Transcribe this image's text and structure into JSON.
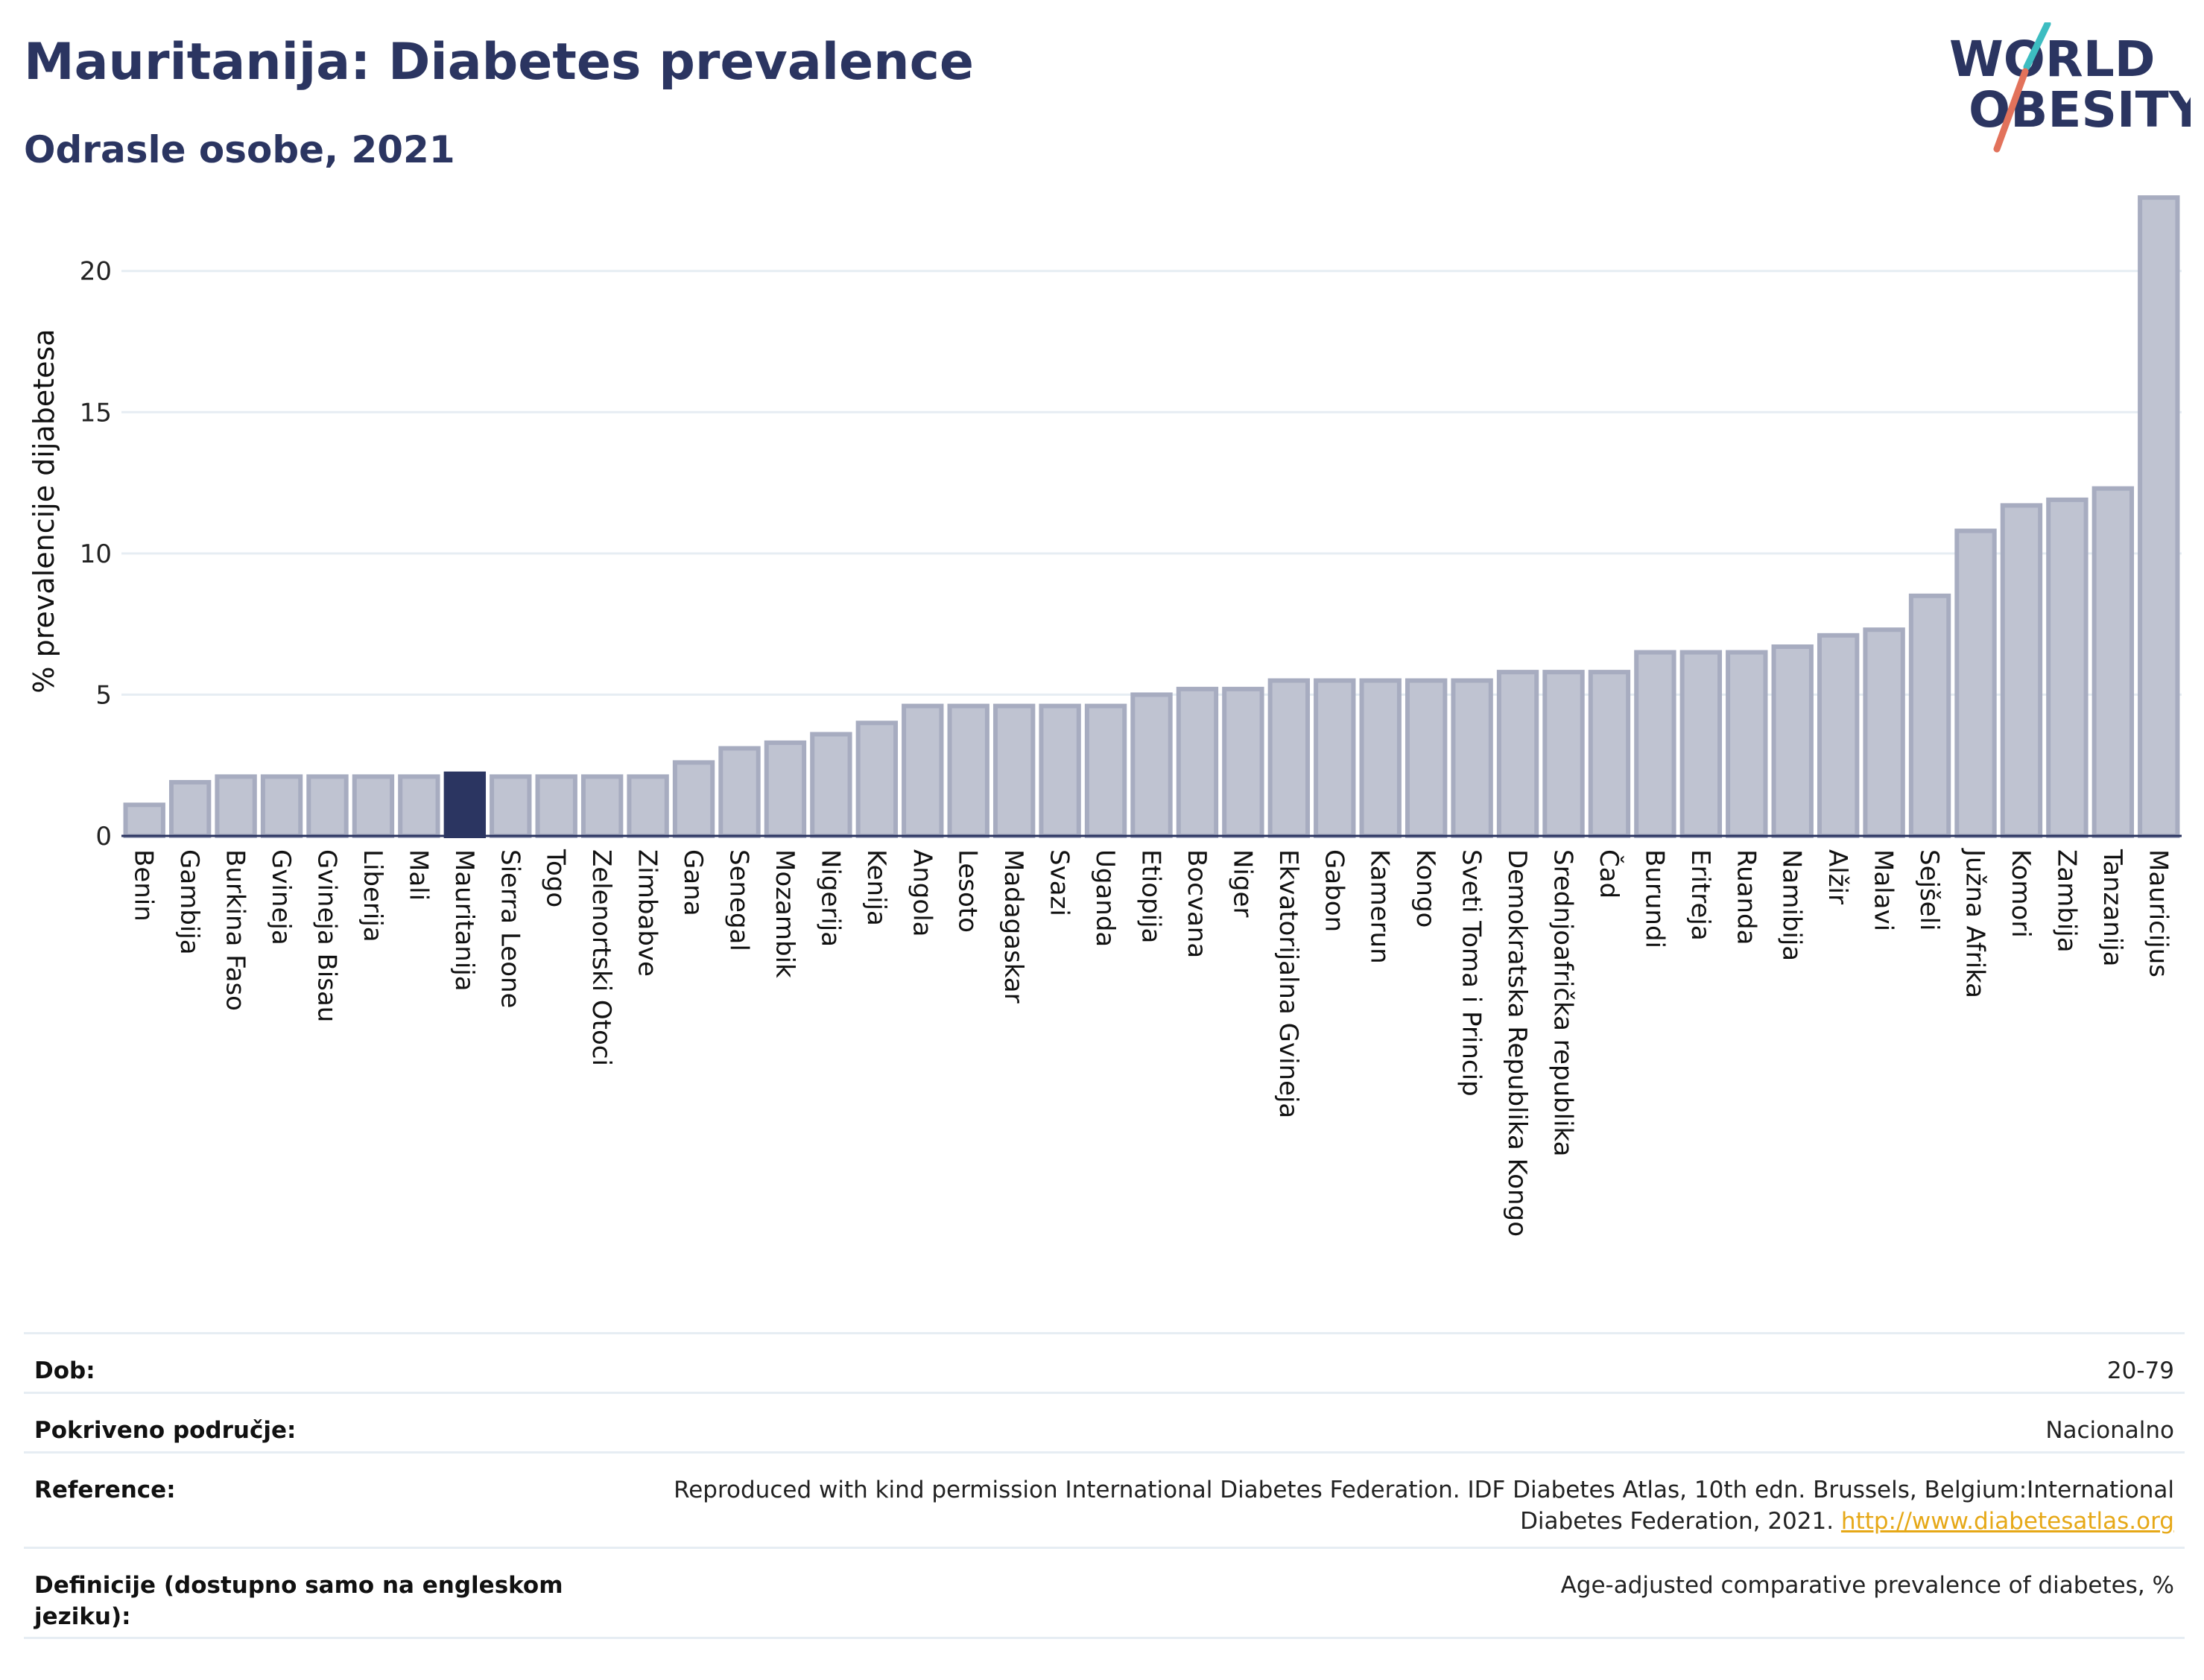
{
  "header": {
    "title": "Mauritanija: Diabetes prevalence",
    "subtitle": "Odrasle osobe, 2021"
  },
  "logo": {
    "line1": "WORLD",
    "line2": "OBESITY",
    "colors": {
      "text": "#2b3561",
      "slash_teal": "#3dbdc1",
      "slash_red": "#e2725b"
    }
  },
  "chart_data": {
    "type": "bar",
    "ylabel": "% prevalencije dijabetesa",
    "ylim": [
      0,
      23
    ],
    "yticks": [
      0,
      5,
      10,
      15,
      20
    ],
    "grid": true,
    "highlight": "Mauritanija",
    "colors": {
      "bar": "#bfc3d1",
      "bar_border": "#a7acc0",
      "highlight": "#2b3561",
      "grid": "#e6edf3"
    },
    "categories": [
      "Benin",
      "Gambija",
      "Burkina Faso",
      "Gvineja",
      "Gvineja Bisau",
      "Liberija",
      "Mali",
      "Mauritanija",
      "Sierra Leone",
      "Togo",
      "Zelenortski Otoci",
      "Zimbabve",
      "Gana",
      "Senegal",
      "Mozambik",
      "Nigerija",
      "Kenija",
      "Angola",
      "Lesoto",
      "Madagaskar",
      "Svazi",
      "Uganda",
      "Etiopija",
      "Bocvana",
      "Niger",
      "Ekvatorijalna Gvineja",
      "Gabon",
      "Kamerun",
      "Kongo",
      "Sveti Toma i Princip",
      "Demokratska Republika Kongo",
      "Srednjoafrička republika",
      "Čad",
      "Burundi",
      "Eritreja",
      "Ruanda",
      "Namibija",
      "Alžir",
      "Malavi",
      "Sejšeli",
      "Južna Afrika",
      "Komori",
      "Zambija",
      "Tanzanija",
      "Mauricijus"
    ],
    "values": [
      1.1,
      1.9,
      2.1,
      2.1,
      2.1,
      2.1,
      2.1,
      2.2,
      2.1,
      2.1,
      2.1,
      2.1,
      2.6,
      3.1,
      3.3,
      3.6,
      4.0,
      4.6,
      4.6,
      4.6,
      4.6,
      4.6,
      5.0,
      5.2,
      5.2,
      5.5,
      5.5,
      5.5,
      5.5,
      5.5,
      5.8,
      5.8,
      5.8,
      6.5,
      6.5,
      6.5,
      6.7,
      7.1,
      7.3,
      8.5,
      10.8,
      11.7,
      11.9,
      12.3,
      22.6
    ]
  },
  "info": {
    "rows": [
      {
        "label": "Dob:",
        "value": "20-79"
      },
      {
        "label": "Pokriveno područje:",
        "value": "Nacionalno"
      },
      {
        "label": "Reference:",
        "value": "Reproduced with kind permission International Diabetes Federation.  IDF Diabetes Atlas, 10th edn. Brussels, Belgium:International Diabetes Federation, 2021.",
        "link": "http://www.diabetesatlas.org"
      },
      {
        "label": "Definicije (dostupno samo na engleskom jeziku):",
        "value": "Age-adjusted comparative prevalence of diabetes, %"
      }
    ]
  }
}
